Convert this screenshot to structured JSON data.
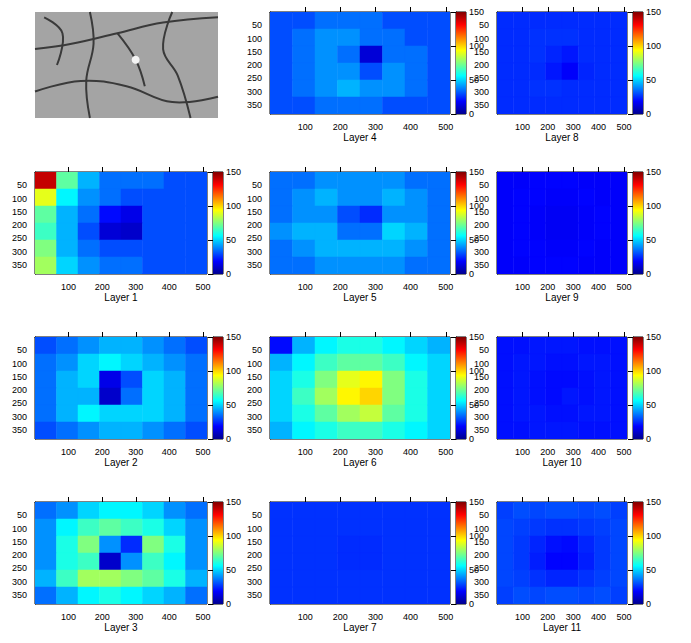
{
  "chart_data": [
    {
      "type": "heatmap",
      "title": "Layer 1",
      "xlim": [
        0,
        512
      ],
      "ylim": [
        0,
        384
      ],
      "xticks": [
        100,
        200,
        300,
        400,
        500
      ],
      "yticks": [
        50,
        100,
        150,
        200,
        250,
        300,
        350
      ],
      "x_edges": [
        0,
        64,
        128,
        192,
        256,
        320,
        384,
        448,
        512
      ],
      "y_edges": [
        0,
        64,
        128,
        192,
        256,
        320,
        384
      ],
      "cells": [
        [
          140,
          70,
          45,
          35,
          35,
          35,
          30,
          30
        ],
        [
          90,
          55,
          40,
          35,
          30,
          30,
          30,
          30
        ],
        [
          70,
          45,
          35,
          20,
          15,
          30,
          30,
          30
        ],
        [
          65,
          45,
          30,
          12,
          10,
          30,
          30,
          30
        ],
        [
          75,
          45,
          35,
          30,
          30,
          30,
          30,
          30
        ],
        [
          80,
          50,
          40,
          35,
          35,
          30,
          30,
          30
        ]
      ],
      "colorbar_range": [
        0,
        150
      ],
      "colorbar_ticks": [
        0,
        50,
        100,
        150
      ]
    },
    {
      "type": "heatmap",
      "title": "Layer 2",
      "xlim": [
        0,
        512
      ],
      "ylim": [
        0,
        384
      ],
      "xticks": [
        100,
        200,
        300,
        400,
        500
      ],
      "yticks": [
        50,
        100,
        150,
        200,
        250,
        300,
        350
      ],
      "x_edges": [
        0,
        64,
        128,
        192,
        256,
        320,
        384,
        448,
        512
      ],
      "y_edges": [
        0,
        64,
        128,
        192,
        256,
        320,
        384
      ],
      "cells": [
        [
          30,
          35,
          40,
          45,
          45,
          40,
          35,
          30
        ],
        [
          35,
          40,
          50,
          55,
          50,
          45,
          40,
          35
        ],
        [
          35,
          45,
          50,
          15,
          30,
          50,
          45,
          35
        ],
        [
          35,
          45,
          45,
          10,
          35,
          50,
          45,
          35
        ],
        [
          35,
          45,
          55,
          50,
          50,
          50,
          45,
          35
        ],
        [
          30,
          35,
          40,
          45,
          45,
          40,
          35,
          30
        ]
      ],
      "colorbar_range": [
        0,
        150
      ],
      "colorbar_ticks": [
        0,
        50,
        100,
        150
      ]
    },
    {
      "type": "heatmap",
      "title": "Layer 3",
      "xlim": [
        0,
        512
      ],
      "ylim": [
        0,
        384
      ],
      "xticks": [
        100,
        200,
        300,
        400,
        500
      ],
      "yticks": [
        50,
        100,
        150,
        200,
        250,
        300,
        350
      ],
      "x_edges": [
        0,
        64,
        128,
        192,
        256,
        320,
        384,
        448,
        512
      ],
      "y_edges": [
        0,
        64,
        128,
        192,
        256,
        320,
        384
      ],
      "cells": [
        [
          35,
          40,
          50,
          55,
          55,
          50,
          40,
          35
        ],
        [
          40,
          55,
          65,
          70,
          65,
          60,
          50,
          40
        ],
        [
          40,
          60,
          75,
          40,
          25,
          75,
          60,
          40
        ],
        [
          40,
          60,
          65,
          10,
          40,
          65,
          55,
          40
        ],
        [
          45,
          65,
          80,
          80,
          75,
          70,
          60,
          45
        ],
        [
          35,
          45,
          55,
          60,
          55,
          50,
          45,
          35
        ]
      ],
      "colorbar_range": [
        0,
        150
      ],
      "colorbar_ticks": [
        0,
        50,
        100,
        150
      ]
    },
    {
      "type": "heatmap",
      "title": "Layer 4",
      "xlim": [
        0,
        512
      ],
      "ylim": [
        0,
        384
      ],
      "xticks": [
        100,
        200,
        300,
        400,
        500
      ],
      "yticks": [
        50,
        100,
        150,
        200,
        250,
        300,
        350
      ],
      "x_edges": [
        0,
        64,
        128,
        192,
        256,
        320,
        384,
        448,
        512
      ],
      "y_edges": [
        0,
        64,
        128,
        192,
        256,
        320,
        384
      ],
      "cells": [
        [
          30,
          30,
          35,
          35,
          35,
          30,
          30,
          30
        ],
        [
          30,
          35,
          40,
          40,
          35,
          35,
          30,
          30
        ],
        [
          30,
          35,
          40,
          35,
          12,
          35,
          35,
          30
        ],
        [
          30,
          35,
          40,
          40,
          30,
          40,
          35,
          30
        ],
        [
          30,
          35,
          40,
          45,
          40,
          40,
          35,
          30
        ],
        [
          30,
          30,
          35,
          35,
          35,
          30,
          30,
          30
        ]
      ],
      "colorbar_range": [
        0,
        150
      ],
      "colorbar_ticks": [
        0,
        50,
        100,
        150
      ]
    },
    {
      "type": "heatmap",
      "title": "Layer 5",
      "xlim": [
        0,
        512
      ],
      "ylim": [
        0,
        384
      ],
      "xticks": [
        100,
        200,
        300,
        400,
        500
      ],
      "yticks": [
        50,
        100,
        150,
        200,
        250,
        300,
        350
      ],
      "x_edges": [
        0,
        64,
        128,
        192,
        256,
        320,
        384,
        448,
        512
      ],
      "y_edges": [
        0,
        64,
        128,
        192,
        256,
        320,
        384
      ],
      "cells": [
        [
          35,
          35,
          40,
          40,
          40,
          40,
          35,
          35
        ],
        [
          35,
          40,
          45,
          40,
          40,
          45,
          40,
          35
        ],
        [
          35,
          40,
          40,
          30,
          25,
          40,
          40,
          35
        ],
        [
          40,
          45,
          45,
          35,
          35,
          50,
          45,
          35
        ],
        [
          35,
          40,
          45,
          45,
          45,
          45,
          40,
          35
        ],
        [
          35,
          35,
          40,
          40,
          40,
          40,
          35,
          35
        ]
      ],
      "colorbar_range": [
        0,
        150
      ],
      "colorbar_ticks": [
        0,
        50,
        100,
        150
      ]
    },
    {
      "type": "heatmap",
      "title": "Layer 6",
      "xlim": [
        0,
        512
      ],
      "ylim": [
        0,
        384
      ],
      "xticks": [
        100,
        200,
        300,
        400,
        500
      ],
      "yticks": [
        50,
        100,
        150,
        200,
        250,
        300,
        350
      ],
      "x_edges": [
        0,
        64,
        128,
        192,
        256,
        320,
        384,
        448,
        512
      ],
      "y_edges": [
        0,
        64,
        128,
        192,
        256,
        320,
        384
      ],
      "cells": [
        [
          20,
          45,
          55,
          60,
          60,
          55,
          50,
          45
        ],
        [
          45,
          55,
          65,
          70,
          70,
          65,
          55,
          50
        ],
        [
          50,
          60,
          75,
          90,
          95,
          75,
          60,
          50
        ],
        [
          50,
          65,
          80,
          95,
          100,
          75,
          60,
          50
        ],
        [
          50,
          60,
          70,
          80,
          85,
          70,
          60,
          50
        ],
        [
          45,
          55,
          60,
          65,
          65,
          60,
          55,
          50
        ]
      ],
      "colorbar_range": [
        0,
        150
      ],
      "colorbar_ticks": [
        0,
        50,
        100,
        150
      ]
    },
    {
      "type": "heatmap",
      "title": "Layer 7",
      "xlim": [
        0,
        512
      ],
      "ylim": [
        0,
        384
      ],
      "xticks": [
        100,
        200,
        300,
        400,
        500
      ],
      "yticks": [
        50,
        100,
        150,
        200,
        250,
        300,
        350
      ],
      "x_edges": [
        0,
        64,
        128,
        192,
        256,
        320,
        384,
        448,
        512
      ],
      "y_edges": [
        0,
        64,
        128,
        192,
        256,
        320,
        384
      ],
      "cells": [
        [
          26,
          26,
          26,
          26,
          26,
          26,
          26,
          26
        ],
        [
          26,
          26,
          26,
          26,
          26,
          26,
          26,
          26
        ],
        [
          26,
          26,
          26,
          25,
          25,
          26,
          26,
          26
        ],
        [
          26,
          26,
          26,
          25,
          25,
          26,
          26,
          26
        ],
        [
          26,
          26,
          26,
          26,
          26,
          26,
          26,
          26
        ],
        [
          26,
          26,
          26,
          26,
          26,
          26,
          26,
          26
        ]
      ],
      "colorbar_range": [
        0,
        150
      ],
      "colorbar_ticks": [
        0,
        50,
        100,
        150
      ]
    },
    {
      "type": "heatmap",
      "title": "Layer 8",
      "xlim": [
        0,
        512
      ],
      "ylim": [
        0,
        384
      ],
      "xticks": [
        100,
        200,
        300,
        400,
        500
      ],
      "yticks": [
        50,
        100,
        150,
        200,
        250,
        300,
        350
      ],
      "x_edges": [
        0,
        64,
        128,
        192,
        256,
        320,
        384,
        448,
        512
      ],
      "y_edges": [
        0,
        64,
        128,
        192,
        256,
        320,
        384
      ],
      "cells": [
        [
          25,
          25,
          25,
          25,
          25,
          25,
          25,
          25
        ],
        [
          25,
          25,
          26,
          26,
          26,
          25,
          25,
          25
        ],
        [
          25,
          25,
          26,
          24,
          22,
          25,
          25,
          25
        ],
        [
          25,
          25,
          25,
          22,
          18,
          24,
          25,
          25
        ],
        [
          25,
          25,
          26,
          26,
          25,
          25,
          25,
          25
        ],
        [
          25,
          25,
          25,
          25,
          25,
          25,
          25,
          25
        ]
      ],
      "colorbar_range": [
        0,
        150
      ],
      "colorbar_ticks": [
        0,
        50,
        100,
        150
      ]
    },
    {
      "type": "heatmap",
      "title": "Layer 9",
      "xlim": [
        0,
        512
      ],
      "ylim": [
        0,
        384
      ],
      "xticks": [
        100,
        200,
        300,
        400,
        500
      ],
      "yticks": [
        50,
        100,
        150,
        200,
        250,
        300,
        350
      ],
      "x_edges": [
        0,
        64,
        128,
        192,
        256,
        320,
        384,
        448,
        512
      ],
      "y_edges": [
        0,
        64,
        128,
        192,
        256,
        320,
        384
      ],
      "cells": [
        [
          18,
          18,
          19,
          19,
          19,
          18,
          18,
          18
        ],
        [
          18,
          19,
          19,
          18,
          18,
          19,
          18,
          18
        ],
        [
          18,
          19,
          18,
          17,
          17,
          18,
          19,
          18
        ],
        [
          18,
          19,
          18,
          17,
          17,
          18,
          19,
          18
        ],
        [
          18,
          19,
          19,
          18,
          18,
          19,
          18,
          18
        ],
        [
          18,
          18,
          19,
          19,
          19,
          18,
          18,
          18
        ]
      ],
      "colorbar_range": [
        0,
        150
      ],
      "colorbar_ticks": [
        0,
        50,
        100,
        150
      ]
    },
    {
      "type": "heatmap",
      "title": "Layer 10",
      "xlim": [
        0,
        512
      ],
      "ylim": [
        0,
        384
      ],
      "xticks": [
        100,
        200,
        300,
        400,
        500
      ],
      "yticks": [
        50,
        100,
        150,
        200,
        250,
        300,
        350
      ],
      "x_edges": [
        0,
        64,
        128,
        192,
        256,
        320,
        384,
        448,
        512
      ],
      "y_edges": [
        0,
        64,
        128,
        192,
        256,
        320,
        384
      ],
      "cells": [
        [
          21,
          21,
          22,
          22,
          22,
          21,
          21,
          21
        ],
        [
          21,
          22,
          22,
          21,
          21,
          22,
          22,
          21
        ],
        [
          21,
          22,
          21,
          20,
          20,
          21,
          22,
          21
        ],
        [
          21,
          22,
          21,
          20,
          22,
          21,
          22,
          21
        ],
        [
          21,
          22,
          22,
          21,
          21,
          22,
          22,
          21
        ],
        [
          21,
          21,
          22,
          22,
          22,
          21,
          21,
          21
        ]
      ],
      "colorbar_range": [
        0,
        150
      ],
      "colorbar_ticks": [
        0,
        50,
        100,
        150
      ]
    },
    {
      "type": "heatmap",
      "title": "Layer 11",
      "xlim": [
        0,
        512
      ],
      "ylim": [
        0,
        384
      ],
      "xticks": [
        100,
        200,
        300,
        400,
        500
      ],
      "yticks": [
        50,
        100,
        150,
        200,
        250,
        300,
        350
      ],
      "x_edges": [
        0,
        64,
        128,
        192,
        256,
        320,
        384,
        448,
        512
      ],
      "y_edges": [
        0,
        64,
        128,
        192,
        256,
        320,
        384
      ],
      "cells": [
        [
          28,
          30,
          29,
          30,
          30,
          29,
          30,
          28
        ],
        [
          29,
          28,
          27,
          26,
          26,
          27,
          28,
          29
        ],
        [
          29,
          27,
          24,
          21,
          20,
          24,
          27,
          29
        ],
        [
          29,
          27,
          23,
          19,
          19,
          23,
          27,
          29
        ],
        [
          29,
          28,
          26,
          24,
          24,
          26,
          28,
          29
        ],
        [
          28,
          30,
          29,
          30,
          30,
          29,
          30,
          28
        ]
      ],
      "colorbar_range": [
        0,
        150
      ],
      "colorbar_ticks": [
        0,
        50,
        100,
        150
      ]
    }
  ]
}
